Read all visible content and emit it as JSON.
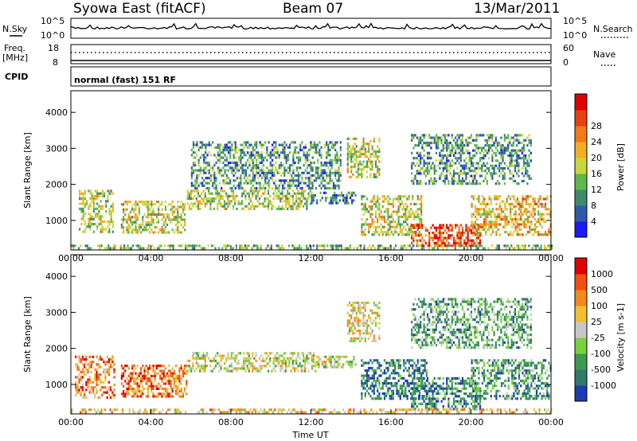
{
  "header": {
    "station": "Syowa East (fitACF)",
    "beam": "Beam 07",
    "date": "13/Mar/2011"
  },
  "top_panels": {
    "nsky_label": "N.Sky",
    "nsky_ticks": [
      "10^5",
      "10^0"
    ],
    "nsearch_label": "N.Search",
    "nsearch_ticks": [
      "10^5",
      "10^0"
    ],
    "freq_label": "Freq.",
    "freq_unit": "[MHz]",
    "freq_ticks": [
      "18",
      "8"
    ],
    "nave_label": "Nave",
    "nave_ticks": [
      "60",
      "0"
    ],
    "cpid_label": "CPID",
    "cpid_text": "normal (fast) 151 RF"
  },
  "chart_data": [
    {
      "type": "heatmap",
      "name": "power",
      "ylabel": "Slant Range [km]",
      "xlabel": "",
      "x_ticks": [
        "00:00",
        "04:00",
        "08:00",
        "12:00",
        "16:00",
        "20:00",
        "00:00"
      ],
      "xlim_hours": [
        0,
        24
      ],
      "ylim": [
        180,
        4600
      ],
      "y_ticks": [
        1000,
        2000,
        3000,
        4000
      ],
      "colorbar": {
        "label": "Power [dB]",
        "ticks": [
          "4",
          "8",
          "12",
          "16",
          "20",
          "24",
          "28"
        ],
        "colors": [
          "#1a1aff",
          "#2f5aa8",
          "#3f8a6f",
          "#5fb84a",
          "#c8d83a",
          "#f0b020",
          "#f07a18",
          "#e84010",
          "#e00000"
        ]
      },
      "echo_regions": [
        {
          "t0": 0.4,
          "t1": 2.1,
          "r0": 650,
          "r1": 1850,
          "level": 0.45
        },
        {
          "t0": 2.5,
          "t1": 5.7,
          "r0": 700,
          "r1": 1550,
          "level": 0.5
        },
        {
          "t0": 5.8,
          "t1": 12.0,
          "r0": 1300,
          "r1": 1850,
          "level": 0.45
        },
        {
          "t0": 12.0,
          "t1": 14.2,
          "r0": 1500,
          "r1": 1800,
          "level": 0.25
        },
        {
          "t0": 13.8,
          "t1": 15.4,
          "r0": 2200,
          "r1": 3300,
          "level": 0.5
        },
        {
          "t0": 14.5,
          "t1": 17.5,
          "r0": 600,
          "r1": 1700,
          "level": 0.5
        },
        {
          "t0": 17.0,
          "t1": 20.5,
          "r0": 300,
          "r1": 900,
          "level": 0.85
        },
        {
          "t0": 20.0,
          "t1": 24.0,
          "r0": 600,
          "r1": 1700,
          "level": 0.6
        },
        {
          "t0": 0.0,
          "t1": 24.0,
          "r0": 220,
          "r1": 330,
          "level": 0.4
        },
        {
          "t0": 6.0,
          "t1": 13.5,
          "r0": 1900,
          "r1": 3200,
          "level": 0.3
        },
        {
          "t0": 17.0,
          "t1": 23.0,
          "r0": 2000,
          "r1": 3400,
          "level": 0.3
        }
      ]
    },
    {
      "type": "heatmap",
      "name": "velocity",
      "ylabel": "Slant Range [km]",
      "xlabel": "Time UT",
      "x_ticks": [
        "00:00",
        "04:00",
        "08:00",
        "12:00",
        "16:00",
        "20:00",
        "00:00"
      ],
      "xlim_hours": [
        0,
        24
      ],
      "ylim": [
        180,
        4600
      ],
      "y_ticks": [
        1000,
        2000,
        3000,
        4000
      ],
      "colorbar": {
        "label": "Velocity [m s-1]",
        "ticks": [
          "1000",
          "500",
          "100",
          "25",
          "-25",
          "-100",
          "-500",
          "-1000"
        ],
        "colors": [
          "#1a3cb0",
          "#2f7a6a",
          "#3c9a50",
          "#7ad040",
          "#c8c8c8",
          "#f0c030",
          "#f08a18",
          "#f05010",
          "#e00000"
        ]
      },
      "echo_regions": [
        {
          "t0": 0.2,
          "t1": 2.2,
          "r0": 650,
          "r1": 1800,
          "level": 0.75
        },
        {
          "t0": 2.5,
          "t1": 5.8,
          "r0": 700,
          "r1": 1550,
          "level": 0.78
        },
        {
          "t0": 5.8,
          "t1": 12.2,
          "r0": 1350,
          "r1": 1900,
          "level": 0.5
        },
        {
          "t0": 12.0,
          "t1": 14.2,
          "r0": 1500,
          "r1": 1800,
          "level": 0.5
        },
        {
          "t0": 13.8,
          "t1": 15.4,
          "r0": 2200,
          "r1": 3300,
          "level": 0.55
        },
        {
          "t0": 14.5,
          "t1": 17.8,
          "r0": 600,
          "r1": 1700,
          "level": 0.15
        },
        {
          "t0": 17.0,
          "t1": 20.5,
          "r0": 300,
          "r1": 1200,
          "level": 0.2
        },
        {
          "t0": 20.0,
          "t1": 24.0,
          "r0": 600,
          "r1": 1700,
          "level": 0.25
        },
        {
          "t0": 0.0,
          "t1": 24.0,
          "r0": 220,
          "r1": 330,
          "level": 0.6
        },
        {
          "t0": 17.0,
          "t1": 23.0,
          "r0": 2000,
          "r1": 3400,
          "level": 0.3
        }
      ]
    }
  ]
}
